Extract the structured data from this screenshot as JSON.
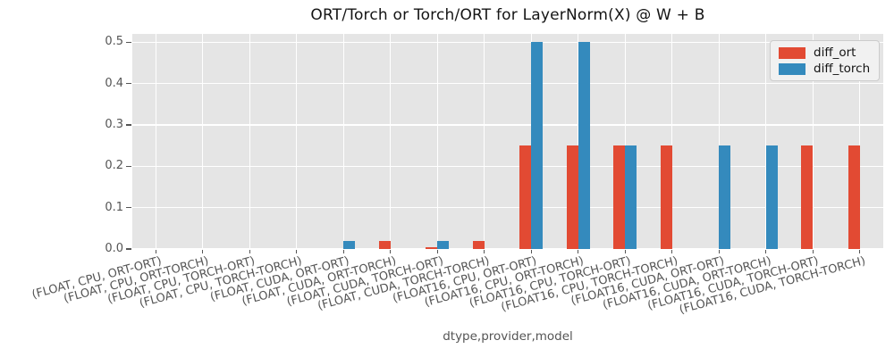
{
  "chart_data": {
    "type": "bar",
    "title": "ORT/Torch or Torch/ORT for LayerNorm(X) @ W + B",
    "xlabel": "dtype,provider,model",
    "ylabel": "",
    "ylim": [
      0,
      0.52
    ],
    "yticks": [
      0.0,
      0.1,
      0.2,
      0.3,
      0.4,
      0.5
    ],
    "grid": true,
    "legend_position": "upper right",
    "categories": [
      "(FLOAT, CPU, ORT-ORT)",
      "(FLOAT, CPU, ORT-TORCH)",
      "(FLOAT, CPU, TORCH-ORT)",
      "(FLOAT, CPU, TORCH-TORCH)",
      "(FLOAT, CUDA, ORT-ORT)",
      "(FLOAT, CUDA, ORT-TORCH)",
      "(FLOAT, CUDA, TORCH-ORT)",
      "(FLOAT, CUDA, TORCH-TORCH)",
      "(FLOAT16, CPU, ORT-ORT)",
      "(FLOAT16, CPU, ORT-TORCH)",
      "(FLOAT16, CPU, TORCH-ORT)",
      "(FLOAT16, CPU, TORCH-TORCH)",
      "(FLOAT16, CUDA, ORT-ORT)",
      "(FLOAT16, CUDA, ORT-TORCH)",
      "(FLOAT16, CUDA, TORCH-ORT)",
      "(FLOAT16, CUDA, TORCH-TORCH)"
    ],
    "series": [
      {
        "name": "diff_ort",
        "color": "#E24A33",
        "values": [
          0,
          0,
          0,
          0,
          0,
          0.02,
          0.004,
          0.02,
          0.25,
          0.25,
          0.25,
          0.25,
          0,
          0,
          0.25,
          0.25
        ]
      },
      {
        "name": "diff_torch",
        "color": "#348ABD",
        "values": [
          0,
          0,
          0,
          0,
          0.02,
          0,
          0.02,
          0,
          0.5,
          0.5,
          0.25,
          0,
          0.25,
          0.25,
          0,
          0
        ]
      }
    ],
    "colors": {
      "panel_background": "#e5e5e5",
      "grid": "#ffffff",
      "tick_text": "#555555",
      "title_text": "#141414",
      "legend_background": "#f1f1f1",
      "legend_border": "#cccccc"
    }
  }
}
